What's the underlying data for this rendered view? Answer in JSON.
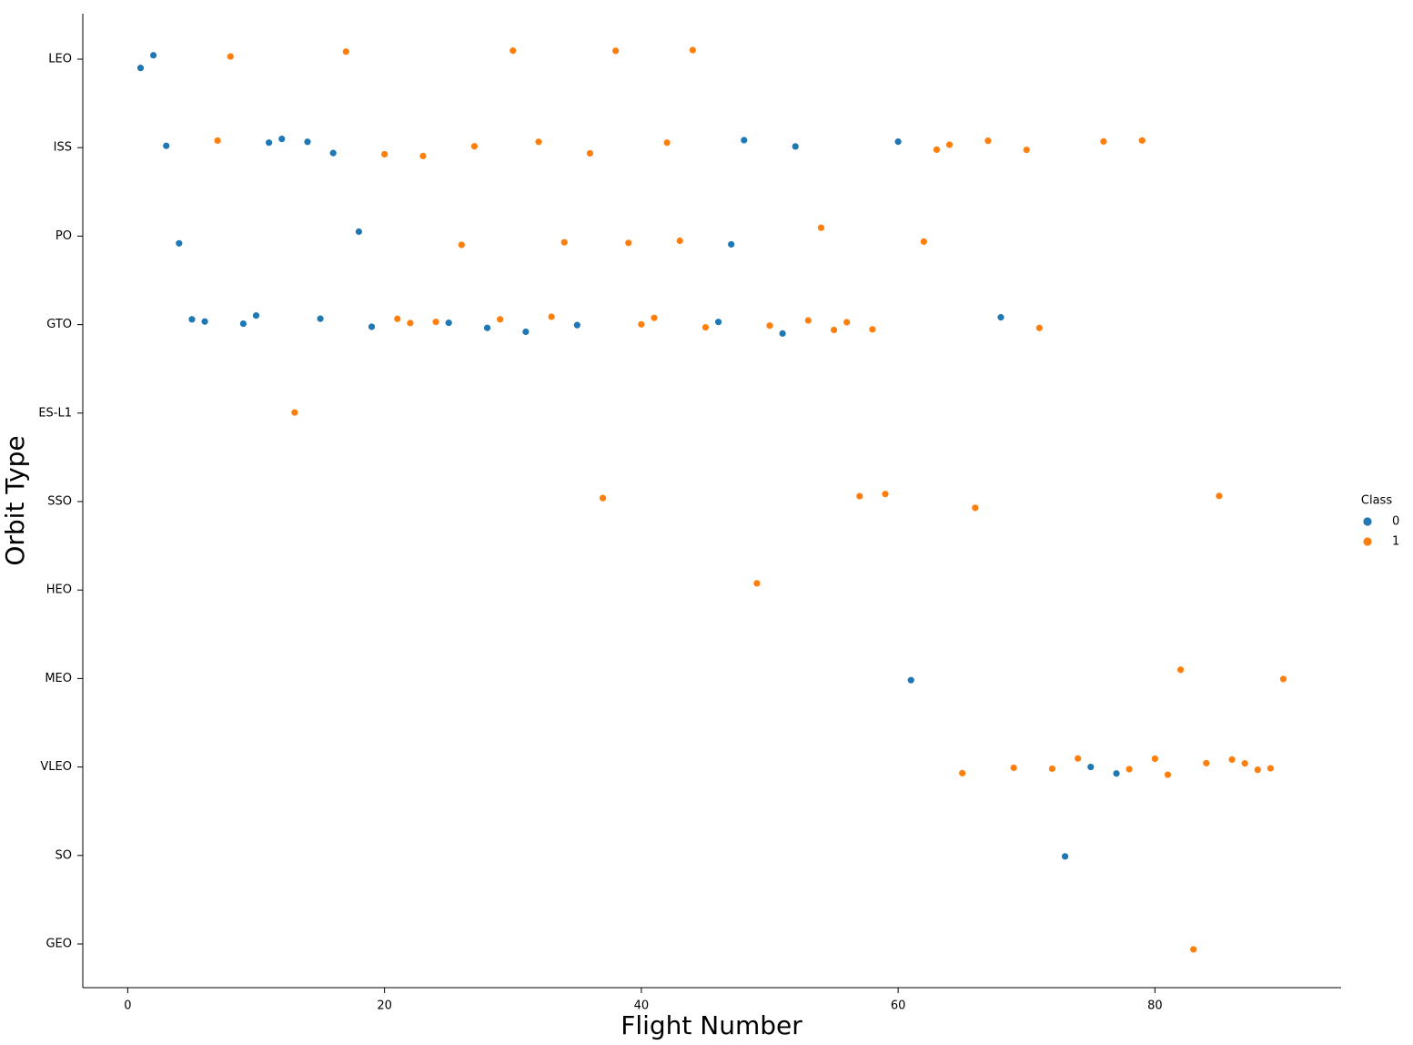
{
  "chart_data": {
    "type": "strip",
    "x_label": "Flight Number",
    "y_label": "Orbit Type",
    "y_categories": [
      "LEO",
      "ISS",
      "PO",
      "GTO",
      "ES-L1",
      "SSO",
      "HEO",
      "MEO",
      "VLEO",
      "SO",
      "GEO"
    ],
    "xlim": [
      -3.5,
      94.5
    ],
    "xticks": [
      0,
      20,
      40,
      60,
      80
    ],
    "legend_title": "Class",
    "legend_position": "right",
    "series": [
      {
        "name": "0",
        "color": "#1f77b4",
        "x": [
          1,
          2,
          3,
          11,
          12,
          14,
          16,
          48,
          52,
          60,
          4,
          18,
          47,
          5,
          6,
          9,
          10,
          15,
          19,
          25,
          28,
          31,
          35,
          46,
          51,
          68,
          61,
          75,
          77,
          73
        ],
        "values": [
          "LEO",
          "LEO",
          "ISS",
          "ISS",
          "ISS",
          "ISS",
          "ISS",
          "ISS",
          "ISS",
          "ISS",
          "PO",
          "PO",
          "PO",
          "GTO",
          "GTO",
          "GTO",
          "GTO",
          "GTO",
          "GTO",
          "GTO",
          "GTO",
          "GTO",
          "GTO",
          "GTO",
          "GTO",
          "GTO",
          "MEO",
          "VLEO",
          "VLEO",
          "SO"
        ]
      },
      {
        "name": "1",
        "color": "#ff7f0e",
        "x": [
          8,
          17,
          30,
          38,
          44,
          7,
          20,
          23,
          27,
          32,
          36,
          42,
          63,
          64,
          67,
          70,
          76,
          79,
          26,
          34,
          39,
          43,
          54,
          62,
          21,
          22,
          24,
          29,
          33,
          40,
          41,
          45,
          50,
          53,
          55,
          56,
          58,
          71,
          13,
          37,
          57,
          59,
          66,
          85,
          49,
          82,
          90,
          65,
          69,
          72,
          74,
          78,
          80,
          81,
          84,
          86,
          87,
          88,
          89,
          83
        ],
        "values": [
          "LEO",
          "LEO",
          "LEO",
          "LEO",
          "LEO",
          "ISS",
          "ISS",
          "ISS",
          "ISS",
          "ISS",
          "ISS",
          "ISS",
          "ISS",
          "ISS",
          "ISS",
          "ISS",
          "ISS",
          "ISS",
          "PO",
          "PO",
          "PO",
          "PO",
          "PO",
          "PO",
          "GTO",
          "GTO",
          "GTO",
          "GTO",
          "GTO",
          "GTO",
          "GTO",
          "GTO",
          "GTO",
          "GTO",
          "GTO",
          "GTO",
          "GTO",
          "GTO",
          "ES-L1",
          "SSO",
          "SSO",
          "SSO",
          "SSO",
          "SSO",
          "HEO",
          "MEO",
          "MEO",
          "VLEO",
          "VLEO",
          "VLEO",
          "VLEO",
          "VLEO",
          "VLEO",
          "VLEO",
          "VLEO",
          "VLEO",
          "VLEO",
          "VLEO",
          "VLEO",
          "GEO"
        ]
      }
    ]
  }
}
